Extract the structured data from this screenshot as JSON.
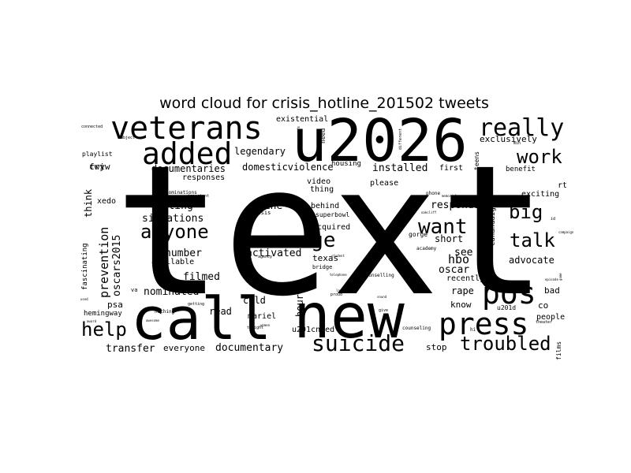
{
  "chart_data": {
    "type": "wordcloud",
    "title": "word cloud for crisis_hotline_201502 tweets",
    "colors": {
      "text": "#000000",
      "background": "#ffffff"
    },
    "words": [
      {
        "word": "text",
        "weight": 100
      },
      {
        "word": "u2026",
        "weight": 40
      },
      {
        "word": "new",
        "weight": 38
      },
      {
        "word": "call",
        "weight": 36
      },
      {
        "word": "veterans",
        "weight": 22
      },
      {
        "word": "added",
        "weight": 20
      },
      {
        "word": "press",
        "weight": 20
      },
      {
        "word": "really",
        "weight": 18
      },
      {
        "word": "pos",
        "weight": 18
      },
      {
        "word": "message",
        "weight": 16
      },
      {
        "word": "suicide",
        "weight": 16
      },
      {
        "word": "anyone",
        "weight": 15
      },
      {
        "word": "want",
        "weight": 15
      },
      {
        "word": "troubled",
        "weight": 15
      },
      {
        "word": "work",
        "weight": 14
      },
      {
        "word": "big",
        "weight": 14
      },
      {
        "word": "talk",
        "weight": 14
      },
      {
        "word": "help",
        "weight": 14
      },
      {
        "word": "prevention",
        "weight": 10
      },
      {
        "word": "oscars2015",
        "weight": 9
      },
      {
        "word": "documentary",
        "weight": 9
      },
      {
        "word": "transfer",
        "weight": 9
      },
      {
        "word": "responds",
        "weight": 9
      },
      {
        "word": "texting",
        "weight": 9
      },
      {
        "word": "situations",
        "weight": 9
      },
      {
        "word": "nominated",
        "weight": 9
      },
      {
        "word": "filmed",
        "weight": 9
      },
      {
        "word": "number",
        "weight": 9
      },
      {
        "word": "activated",
        "weight": 9
      },
      {
        "word": "line",
        "weight": 9
      },
      {
        "word": "installed",
        "weight": 9
      },
      {
        "word": "domesticviolence",
        "weight": 9
      },
      {
        "word": "legendary",
        "weight": 8
      },
      {
        "word": "documentaries",
        "weight": 8
      },
      {
        "word": "think",
        "weight": 8
      },
      {
        "word": "hbo",
        "weight": 9
      },
      {
        "word": "oscar",
        "weight": 9
      },
      {
        "word": "see",
        "weight": 9
      },
      {
        "word": "short",
        "weight": 8
      },
      {
        "word": "rape",
        "weight": 8
      },
      {
        "word": "advocate",
        "weight": 8
      },
      {
        "word": "hour",
        "weight": 8
      },
      {
        "word": "cold",
        "weight": 8
      },
      {
        "word": "read",
        "weight": 8
      },
      {
        "word": "psa",
        "weight": 7
      },
      {
        "word": "fwiw",
        "weight": 7
      },
      {
        "word": "cry",
        "weight": 7
      },
      {
        "word": "exclusively",
        "weight": 7
      },
      {
        "word": "first",
        "weight": 7
      },
      {
        "word": "please",
        "weight": 7
      },
      {
        "word": "texas",
        "weight": 7
      },
      {
        "word": "acquired",
        "weight": 7
      },
      {
        "word": "behind",
        "weight": 7
      },
      {
        "word": "superbowl",
        "weight": 6
      },
      {
        "word": "everyone",
        "weight": 7
      },
      {
        "word": "stop",
        "weight": 7
      },
      {
        "word": "mariel",
        "weight": 6
      },
      {
        "word": "u201cneed",
        "weight": 6
      },
      {
        "word": "know",
        "weight": 7
      },
      {
        "word": "recently",
        "weight": 7
      },
      {
        "word": "co",
        "weight": 7
      },
      {
        "word": "bad",
        "weight": 7
      },
      {
        "word": "people",
        "weight": 7
      },
      {
        "word": "exciting",
        "weight": 6
      },
      {
        "word": "benefit",
        "weight": 6
      },
      {
        "word": "xedo",
        "weight": 6
      },
      {
        "word": "responses",
        "weight": 6
      },
      {
        "word": "existential",
        "weight": 6
      },
      {
        "word": "housing",
        "weight": 6
      },
      {
        "word": "video",
        "weight": 6
      },
      {
        "word": "thing",
        "weight": 6
      },
      {
        "word": "available",
        "weight": 6
      },
      {
        "word": "u201d",
        "weight": 6
      },
      {
        "word": "canandaigua",
        "weight": 6
      },
      {
        "word": "hemingway",
        "weight": 5
      },
      {
        "word": "playlist",
        "weight": 5
      },
      {
        "word": "fascinating",
        "weight": 5
      },
      {
        "word": "films",
        "weight": 5
      },
      {
        "word": "teens",
        "weight": 5
      },
      {
        "word": "gorge",
        "weight": 5
      },
      {
        "word": "rt",
        "weight": 5
      },
      {
        "word": "need",
        "weight": 4
      },
      {
        "word": "crisis",
        "weight": 4
      },
      {
        "word": "bridge",
        "weight": 4
      },
      {
        "word": "counselling",
        "weight": 4
      },
      {
        "word": "counseling",
        "weight": 4
      },
      {
        "word": "phone",
        "weight": 4
      },
      {
        "word": "academy",
        "weight": 4
      },
      {
        "word": "nominations",
        "weight": 4
      },
      {
        "word": "agency",
        "weight": 4
      },
      {
        "word": "different",
        "weight": 3
      },
      {
        "word": "cards",
        "weight": 3
      },
      {
        "word": "connected",
        "weight": 3
      },
      {
        "word": "subject",
        "weight": 3
      },
      {
        "word": "important",
        "weight": 3
      },
      {
        "word": "getting",
        "weight": 3
      },
      {
        "word": "tonight",
        "weight": 3
      },
      {
        "word": "give",
        "weight": 3
      },
      {
        "word": "proud",
        "weight": 3
      },
      {
        "word": "min",
        "weight": 3
      },
      {
        "word": "theater",
        "weight": 3
      },
      {
        "word": "episode",
        "weight": 3
      },
      {
        "word": "award",
        "weight": 3
      },
      {
        "word": "nothing",
        "weight": 3
      },
      {
        "word": "hi",
        "weight": 3
      },
      {
        "word": "id",
        "weight": 3
      },
      {
        "word": "va",
        "weight": 4
      },
      {
        "word": "student",
        "weight": 3
      },
      {
        "word": "telephone",
        "weight": 3
      },
      {
        "word": "used",
        "weight": 3
      },
      {
        "word": "game",
        "weight": 3
      },
      {
        "word": "women",
        "weight": 3
      },
      {
        "word": "memorial",
        "weight": 3
      },
      {
        "word": "oakcliff",
        "weight": 3
      },
      {
        "word": "awesome",
        "weight": 3
      },
      {
        "word": "lawson",
        "weight": 3
      },
      {
        "word": "sound",
        "weight": 3
      },
      {
        "word": "campaign",
        "weight": 3
      }
    ]
  }
}
